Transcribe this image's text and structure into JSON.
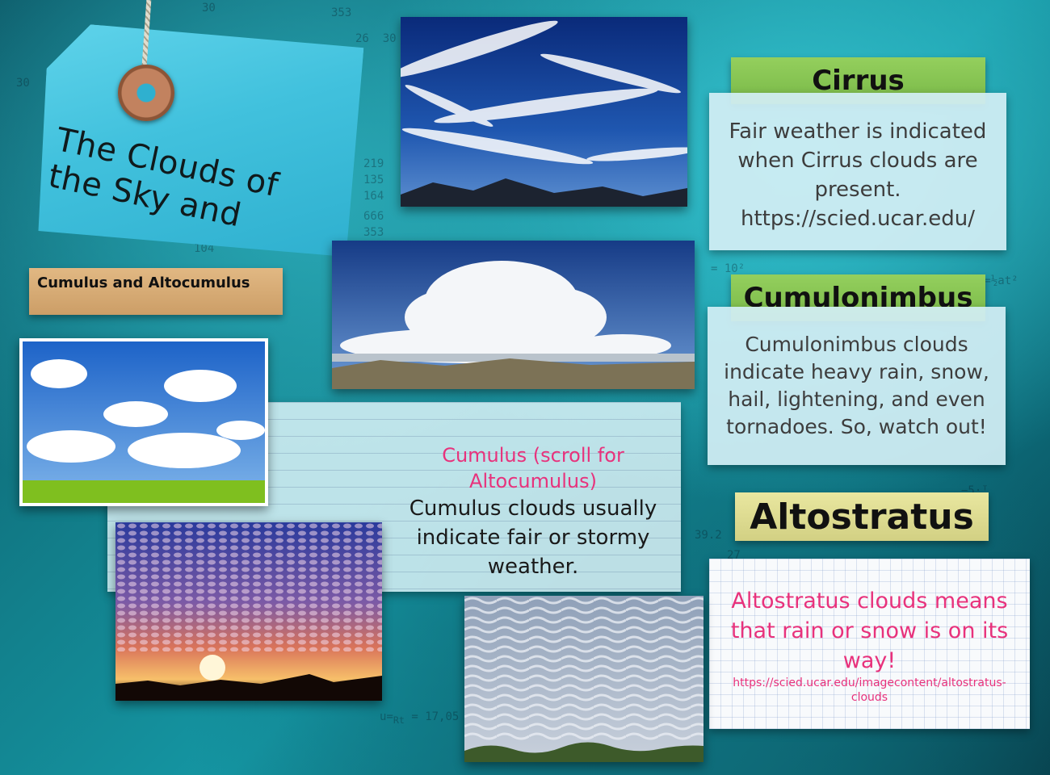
{
  "tag": {
    "title": "The Clouds of the Sky and"
  },
  "section_label": "Cumulus and Altocumulus",
  "cirrus": {
    "heading": "Cirrus",
    "body": "Fair weather is indicated when Cirrus clouds are present. https://scied.ucar.edu/"
  },
  "cumulonimbus": {
    "heading": "Cumulonimbus",
    "body": "Cumulonimbus clouds indicate heavy rain, snow, hail, lightening, and even tornadoes. So, watch out!"
  },
  "altostratus": {
    "heading": "Altostratus",
    "body": "Altostratus clouds means that rain or snow is on its way!",
    "link": "https://scied.ucar.edu/imagecontent/altostratus-clouds"
  },
  "cumulus": {
    "title": "Cumulus (scroll for Altocumulus)",
    "body": "Cumulus clouds usually indicate fair or stormy weather."
  },
  "colors": {
    "accent_pink": "#e8327c",
    "label_green": "#86c552",
    "label_yellow": "#dedc8f",
    "label_tan": "#d8ad76",
    "background_teal": "#12808c"
  },
  "photos": [
    "cirrus-photo",
    "cumulonimbus-photo",
    "cumulus-photo",
    "altocumulus-sunset-photo",
    "altostratus-photo"
  ]
}
